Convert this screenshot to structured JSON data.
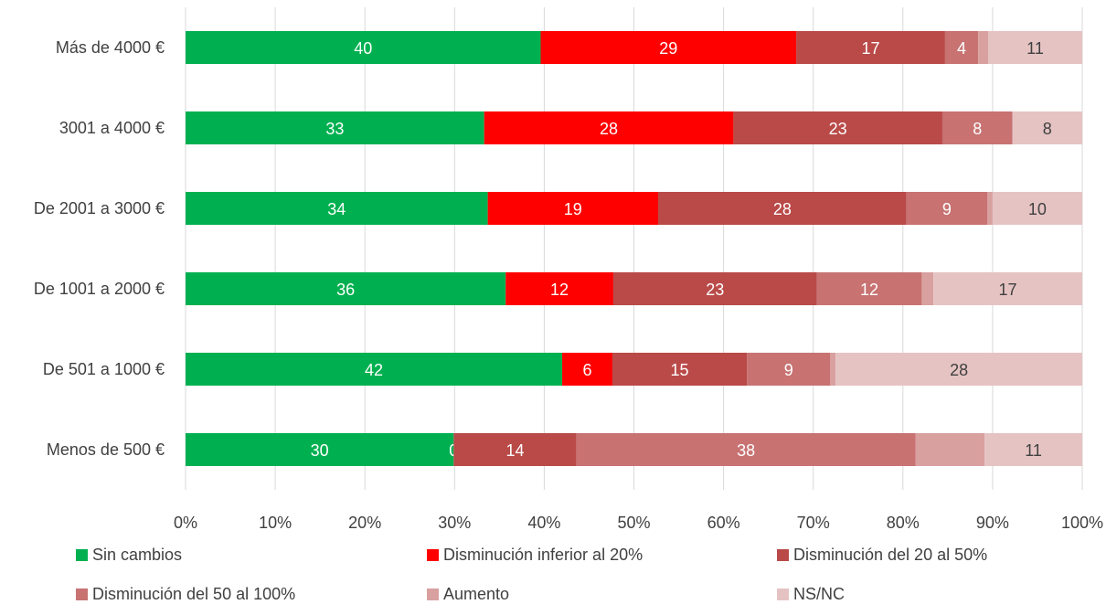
{
  "chart_data": {
    "type": "bar",
    "orientation": "horizontal",
    "stacked": "percent",
    "categories": [
      "Más de 4000 €",
      "3001 a 4000 €",
      "De 2001 a 3000 €",
      "De 1001 a 2000 €",
      "De 501 a 1000 €",
      "Menos de 500 €"
    ],
    "series": [
      {
        "name": "Sin cambios",
        "color": "#00b050",
        "label_color": "#ffffff",
        "values": [
          39.6,
          33.3,
          33.7,
          35.7,
          42.0,
          29.9
        ],
        "labels": [
          "40",
          "33",
          "34",
          "36",
          "42",
          "30"
        ]
      },
      {
        "name": "Disminución inferior al 20%",
        "color": "#ff0000",
        "label_color": "#ffffff",
        "values": [
          28.5,
          27.8,
          19.0,
          12.0,
          5.6,
          0.0
        ],
        "labels": [
          "29",
          "28",
          "19",
          "12",
          "6",
          "0"
        ]
      },
      {
        "name": "Disminución del 20 al 50%",
        "color": "#b94a48",
        "label_color": "#ffffff",
        "values": [
          16.6,
          23.3,
          27.7,
          22.7,
          15.0,
          13.7
        ],
        "labels": [
          "17",
          "23",
          "28",
          "23",
          "15",
          "14"
        ]
      },
      {
        "name": "Disminución del 50 al 100%",
        "color": "#c87272",
        "label_color": "#ffffff",
        "values": [
          3.7,
          7.8,
          9.0,
          11.7,
          9.3,
          37.8
        ],
        "labels": [
          "4",
          "8",
          "9",
          "12",
          "9",
          "38"
        ]
      },
      {
        "name": "Aumento",
        "color": "#d9a0a0",
        "label_color": "#ffffff",
        "values": [
          1.1,
          0.0,
          0.6,
          1.3,
          0.6,
          7.7
        ],
        "labels": [
          "",
          "",
          "",
          "",
          "",
          ""
        ]
      },
      {
        "name": "NS/NC",
        "color": "#e6c3c3",
        "label_color": "#404040",
        "values": [
          10.5,
          7.8,
          10.0,
          16.6,
          27.5,
          10.9
        ],
        "labels": [
          "11",
          "8",
          "10",
          "17",
          "28",
          "11"
        ]
      }
    ],
    "x_ticks": [
      "0%",
      "10%",
      "20%",
      "30%",
      "40%",
      "50%",
      "60%",
      "70%",
      "80%",
      "90%",
      "100%"
    ],
    "xlim": [
      0,
      100
    ],
    "grid": "vertical",
    "legend_position": "bottom"
  }
}
